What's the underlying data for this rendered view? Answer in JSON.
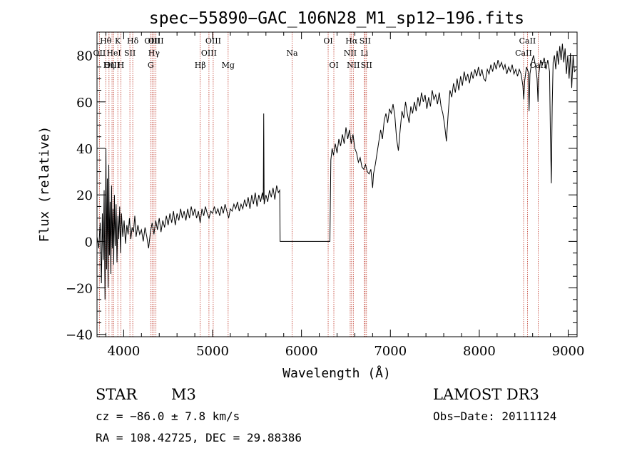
{
  "chart_data": {
    "type": "line",
    "title": "spec−55890−GAC_106N28_M1_sp12−196.fits",
    "xlabel": "Wavelength (Å)",
    "ylabel": "Flux (relative)",
    "xlim": [
      3700,
      9100
    ],
    "ylim": [
      -41,
      90
    ],
    "xticks": [
      4000,
      5000,
      6000,
      7000,
      8000,
      9000
    ],
    "xtick_labels": [
      "4000",
      "5000",
      "6000",
      "7000",
      "8000",
      "9000"
    ],
    "yticks": [
      -40,
      -20,
      0,
      20,
      40,
      60,
      80
    ],
    "ytick_labels": [
      "−40",
      "−20",
      "0",
      "20",
      "40",
      "60",
      "80"
    ],
    "series": [
      {
        "name": "flux",
        "color": "#000000",
        "points": [
          [
            3700,
            2
          ],
          [
            3720,
            -3
          ],
          [
            3735,
            8
          ],
          [
            3750,
            -18
          ],
          [
            3760,
            12
          ],
          [
            3770,
            -8
          ],
          [
            3780,
            22
          ],
          [
            3790,
            -25
          ],
          [
            3800,
            40
          ],
          [
            3808,
            -12
          ],
          [
            3816,
            27
          ],
          [
            3824,
            -20
          ],
          [
            3832,
            33
          ],
          [
            3840,
            -6
          ],
          [
            3848,
            17
          ],
          [
            3856,
            -14
          ],
          [
            3864,
            24
          ],
          [
            3872,
            -3
          ],
          [
            3880,
            14
          ],
          [
            3888,
            -10
          ],
          [
            3896,
            20
          ],
          [
            3905,
            -2
          ],
          [
            3915,
            16
          ],
          [
            3925,
            -9
          ],
          [
            3935,
            11
          ],
          [
            3945,
            1
          ],
          [
            3955,
            15
          ],
          [
            3965,
            -5
          ],
          [
            3975,
            12
          ],
          [
            3990,
            2
          ],
          [
            4005,
            9
          ],
          [
            4020,
            -1
          ],
          [
            4035,
            7
          ],
          [
            4050,
            3
          ],
          [
            4065,
            10
          ],
          [
            4080,
            1
          ],
          [
            4095,
            6
          ],
          [
            4110,
            4
          ],
          [
            4125,
            11
          ],
          [
            4140,
            2
          ],
          [
            4160,
            7
          ],
          [
            4180,
            3
          ],
          [
            4200,
            5
          ],
          [
            4220,
            0
          ],
          [
            4240,
            6
          ],
          [
            4260,
            2
          ],
          [
            4280,
            -3
          ],
          [
            4300,
            4
          ],
          [
            4320,
            8
          ],
          [
            4340,
            3
          ],
          [
            4360,
            9
          ],
          [
            4380,
            5
          ],
          [
            4400,
            10
          ],
          [
            4420,
            4
          ],
          [
            4440,
            9
          ],
          [
            4460,
            6
          ],
          [
            4480,
            11
          ],
          [
            4500,
            7
          ],
          [
            4520,
            12
          ],
          [
            4540,
            8
          ],
          [
            4560,
            13
          ],
          [
            4580,
            7
          ],
          [
            4600,
            12
          ],
          [
            4620,
            9
          ],
          [
            4640,
            14
          ],
          [
            4660,
            10
          ],
          [
            4680,
            13
          ],
          [
            4700,
            9
          ],
          [
            4720,
            14
          ],
          [
            4740,
            10
          ],
          [
            4760,
            15
          ],
          [
            4780,
            11
          ],
          [
            4800,
            14
          ],
          [
            4820,
            10
          ],
          [
            4840,
            13
          ],
          [
            4860,
            8
          ],
          [
            4880,
            14
          ],
          [
            4900,
            11
          ],
          [
            4920,
            15
          ],
          [
            4940,
            12
          ],
          [
            4960,
            10
          ],
          [
            4980,
            13
          ],
          [
            5000,
            12
          ],
          [
            5020,
            15
          ],
          [
            5040,
            12
          ],
          [
            5060,
            14
          ],
          [
            5080,
            11
          ],
          [
            5100,
            15
          ],
          [
            5120,
            12
          ],
          [
            5140,
            16
          ],
          [
            5160,
            13
          ],
          [
            5180,
            10
          ],
          [
            5200,
            14
          ],
          [
            5220,
            13
          ],
          [
            5240,
            16
          ],
          [
            5260,
            14
          ],
          [
            5280,
            17
          ],
          [
            5300,
            13
          ],
          [
            5320,
            16
          ],
          [
            5340,
            14
          ],
          [
            5360,
            18
          ],
          [
            5380,
            15
          ],
          [
            5400,
            19
          ],
          [
            5420,
            14
          ],
          [
            5440,
            20
          ],
          [
            5460,
            16
          ],
          [
            5480,
            21
          ],
          [
            5500,
            15
          ],
          [
            5520,
            20
          ],
          [
            5540,
            17
          ],
          [
            5560,
            21
          ],
          [
            5570,
            18
          ],
          [
            5575,
            55
          ],
          [
            5580,
            16
          ],
          [
            5600,
            20
          ],
          [
            5620,
            17
          ],
          [
            5640,
            22
          ],
          [
            5660,
            19
          ],
          [
            5680,
            23
          ],
          [
            5700,
            18
          ],
          [
            5720,
            24
          ],
          [
            5740,
            21
          ],
          [
            5755,
            22
          ],
          [
            5760,
            0
          ],
          [
            6320,
            0
          ],
          [
            6330,
            35
          ],
          [
            6345,
            40
          ],
          [
            6360,
            37
          ],
          [
            6380,
            42
          ],
          [
            6400,
            38
          ],
          [
            6420,
            44
          ],
          [
            6440,
            41
          ],
          [
            6460,
            46
          ],
          [
            6480,
            42
          ],
          [
            6500,
            49
          ],
          [
            6520,
            44
          ],
          [
            6540,
            48
          ],
          [
            6560,
            42
          ],
          [
            6580,
            46
          ],
          [
            6600,
            40
          ],
          [
            6620,
            38
          ],
          [
            6640,
            34
          ],
          [
            6660,
            36
          ],
          [
            6680,
            32
          ],
          [
            6700,
            31
          ],
          [
            6720,
            33
          ],
          [
            6740,
            30
          ],
          [
            6760,
            29
          ],
          [
            6780,
            31
          ],
          [
            6800,
            23
          ],
          [
            6810,
            29
          ],
          [
            6830,
            33
          ],
          [
            6850,
            38
          ],
          [
            6870,
            43
          ],
          [
            6890,
            48
          ],
          [
            6910,
            44
          ],
          [
            6930,
            52
          ],
          [
            6950,
            55
          ],
          [
            6970,
            51
          ],
          [
            6990,
            57
          ],
          [
            7010,
            55
          ],
          [
            7030,
            59
          ],
          [
            7050,
            54
          ],
          [
            7070,
            44
          ],
          [
            7090,
            39
          ],
          [
            7110,
            48
          ],
          [
            7130,
            56
          ],
          [
            7150,
            53
          ],
          [
            7170,
            60
          ],
          [
            7190,
            55
          ],
          [
            7210,
            51
          ],
          [
            7230,
            58
          ],
          [
            7250,
            55
          ],
          [
            7270,
            60
          ],
          [
            7290,
            56
          ],
          [
            7310,
            62
          ],
          [
            7330,
            58
          ],
          [
            7350,
            64
          ],
          [
            7370,
            60
          ],
          [
            7390,
            63
          ],
          [
            7410,
            57
          ],
          [
            7430,
            62
          ],
          [
            7450,
            58
          ],
          [
            7470,
            65
          ],
          [
            7490,
            61
          ],
          [
            7510,
            63
          ],
          [
            7530,
            59
          ],
          [
            7550,
            64
          ],
          [
            7570,
            58
          ],
          [
            7590,
            55
          ],
          [
            7610,
            50
          ],
          [
            7630,
            43
          ],
          [
            7650,
            55
          ],
          [
            7670,
            65
          ],
          [
            7690,
            62
          ],
          [
            7710,
            68
          ],
          [
            7730,
            64
          ],
          [
            7750,
            70
          ],
          [
            7770,
            65
          ],
          [
            7790,
            71
          ],
          [
            7810,
            67
          ],
          [
            7830,
            73
          ],
          [
            7850,
            69
          ],
          [
            7870,
            72
          ],
          [
            7890,
            68
          ],
          [
            7910,
            73
          ],
          [
            7930,
            70
          ],
          [
            7950,
            74
          ],
          [
            7970,
            71
          ],
          [
            7990,
            75
          ],
          [
            8010,
            71
          ],
          [
            8030,
            74
          ],
          [
            8050,
            70
          ],
          [
            8070,
            69
          ],
          [
            8090,
            74
          ],
          [
            8110,
            72
          ],
          [
            8130,
            76
          ],
          [
            8150,
            73
          ],
          [
            8170,
            77
          ],
          [
            8190,
            74
          ],
          [
            8210,
            78
          ],
          [
            8230,
            75
          ],
          [
            8250,
            77
          ],
          [
            8270,
            74
          ],
          [
            8290,
            76
          ],
          [
            8310,
            72
          ],
          [
            8330,
            75
          ],
          [
            8350,
            73
          ],
          [
            8370,
            76
          ],
          [
            8390,
            72
          ],
          [
            8410,
            74
          ],
          [
            8430,
            71
          ],
          [
            8450,
            74
          ],
          [
            8470,
            72
          ],
          [
            8490,
            67
          ],
          [
            8500,
            61
          ],
          [
            8510,
            69
          ],
          [
            8530,
            75
          ],
          [
            8550,
            73
          ],
          [
            8560,
            56
          ],
          [
            8570,
            72
          ],
          [
            8590,
            77
          ],
          [
            8610,
            80
          ],
          [
            8630,
            76
          ],
          [
            8650,
            70
          ],
          [
            8660,
            60
          ],
          [
            8670,
            72
          ],
          [
            8690,
            78
          ],
          [
            8710,
            76
          ],
          [
            8730,
            79
          ],
          [
            8750,
            74
          ],
          [
            8770,
            78
          ],
          [
            8790,
            73
          ],
          [
            8800,
            46
          ],
          [
            8810,
            25
          ],
          [
            8820,
            58
          ],
          [
            8830,
            77
          ],
          [
            8845,
            80
          ],
          [
            8860,
            74
          ],
          [
            8875,
            82
          ],
          [
            8890,
            76
          ],
          [
            8905,
            84
          ],
          [
            8920,
            78
          ],
          [
            8935,
            85
          ],
          [
            8950,
            77
          ],
          [
            8965,
            83
          ],
          [
            8980,
            72
          ],
          [
            8995,
            80
          ],
          [
            9010,
            70
          ],
          [
            9025,
            81
          ],
          [
            9040,
            66
          ],
          [
            9055,
            80
          ],
          [
            9070,
            73
          ],
          [
            9090,
            74
          ]
        ]
      }
    ],
    "lines": [
      {
        "label": "Hθ",
        "x": 3798,
        "row": 0
      },
      {
        "label": "OII",
        "x": 3727,
        "row": 1
      },
      {
        "label": "Hη",
        "x": 3835,
        "row": 2
      },
      {
        "label": "OIII",
        "x": 3869,
        "row": 2
      },
      {
        "label": "HeI",
        "x": 3889,
        "row": 1
      },
      {
        "label": "K",
        "x": 3934,
        "row": 0
      },
      {
        "label": "H",
        "x": 3968,
        "row": 2
      },
      {
        "label": "SII",
        "x": 4070,
        "row": 1
      },
      {
        "label": "Hδ",
        "x": 4102,
        "row": 0
      },
      {
        "label": "G",
        "x": 4304,
        "row": 2
      },
      {
        "label": "OIII",
        "x": 4320,
        "row": 0
      },
      {
        "label": "Hγ",
        "x": 4341,
        "row": 1
      },
      {
        "label": "OIII",
        "x": 4363,
        "row": 0
      },
      {
        "label": "Hβ",
        "x": 4861,
        "row": 2
      },
      {
        "label": "OIII",
        "x": 4959,
        "row": 1
      },
      {
        "label": "OIII",
        "x": 5007,
        "row": 0
      },
      {
        "label": "Mg",
        "x": 5175,
        "row": 2
      },
      {
        "label": "Na",
        "x": 5894,
        "row": 1
      },
      {
        "label": "OI",
        "x": 6300,
        "row": 0
      },
      {
        "label": "OI",
        "x": 6364,
        "row": 2
      },
      {
        "label": "NII",
        "x": 6548,
        "row": 1
      },
      {
        "label": "Hα",
        "x": 6563,
        "row": 0
      },
      {
        "label": "NII",
        "x": 6583,
        "row": 2
      },
      {
        "label": "Li",
        "x": 6707,
        "row": 1
      },
      {
        "label": "SII",
        "x": 6716,
        "row": 0
      },
      {
        "label": "SII",
        "x": 6731,
        "row": 2
      },
      {
        "label": "CaII",
        "x": 8498,
        "row": 1
      },
      {
        "label": "CaII",
        "x": 8542,
        "row": 0
      },
      {
        "label": "CaII",
        "x": 8662,
        "row": 2
      }
    ],
    "annotations": {
      "object_class": "STAR",
      "subclass": "M3",
      "survey": "LAMOST DR3",
      "cz": "cz = −86.0 ± 7.8 km/s",
      "obs_date": "Obs−Date: 20111124",
      "radec": "RA = 108.42725, DEC =  29.88386"
    }
  }
}
